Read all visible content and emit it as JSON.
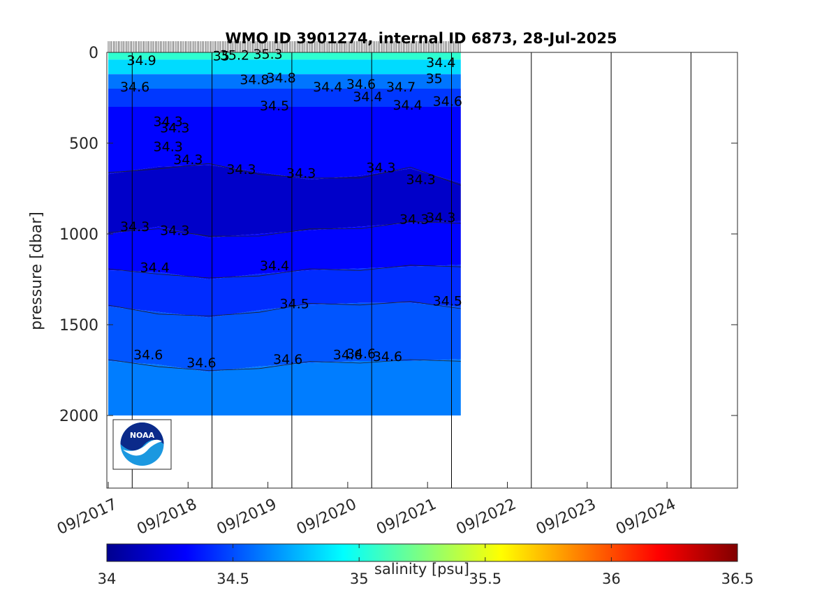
{
  "chart_data": {
    "type": "heatmap",
    "title": "WMO ID 3901274, internal ID 6873, 28-Jul-2025",
    "ylabel": "pressure [dbar]",
    "colorbar_label": "salinity [psu]",
    "x_tick_labels": [
      "09/2017",
      "09/2018",
      "09/2019",
      "09/2020",
      "09/2021",
      "09/2022",
      "09/2023",
      "09/2024"
    ],
    "x_range": [
      "2017-09",
      "2025-07"
    ],
    "data_x_range": [
      "2017-09",
      "2022-02"
    ],
    "y_ticks": [
      0,
      500,
      1000,
      1500,
      2000
    ],
    "ylim": [
      0,
      2400
    ],
    "y_reversed": true,
    "colorbar_ticks": [
      34,
      34.5,
      35,
      35.5,
      36,
      36.5
    ],
    "color_range": [
      34,
      36.5
    ],
    "colormap": "jet",
    "levels": [
      34.2,
      34.3,
      34.4,
      34.5,
      34.6,
      34.7,
      34.8,
      34.9,
      35,
      35.1,
      35.2
    ],
    "contours": [
      {
        "value": 34.3,
        "depth": [
          670,
          630,
          620,
          660,
          700,
          680,
          640,
          720
        ],
        "note": "upper boundary of salinity minimum"
      },
      {
        "value": 34.3,
        "depth": [
          1000,
          960,
          1020,
          1000,
          980,
          960,
          940,
          930
        ],
        "note": "lower boundary of salinity minimum"
      },
      {
        "value": 34.4,
        "depth": [
          1200,
          1210,
          1250,
          1220,
          1200,
          1190,
          1180,
          1170
        ]
      },
      {
        "value": 34.5,
        "depth": [
          1400,
          1430,
          1460,
          1420,
          1390,
          1380,
          1380,
          1400
        ]
      },
      {
        "value": 34.6,
        "depth": [
          1700,
          1720,
          1760,
          1730,
          1710,
          1700,
          1700,
          1690
        ]
      }
    ],
    "contour_labels": [
      {
        "text": "34.3",
        "date": "2018-06",
        "p": 405
      },
      {
        "text": "34.3",
        "date": "2018-07",
        "p": 440
      },
      {
        "text": "34.3",
        "date": "2018-06",
        "p": 545
      },
      {
        "text": "34.3",
        "date": "2018-09",
        "p": 615
      },
      {
        "text": "34.3",
        "date": "2019-05",
        "p": 670
      },
      {
        "text": "34.3",
        "date": "2020-02",
        "p": 690
      },
      {
        "text": "34.3",
        "date": "2021-02",
        "p": 660
      },
      {
        "text": "34.3",
        "date": "2021-08",
        "p": 725
      },
      {
        "text": "34.3",
        "date": "2018-01",
        "p": 985
      },
      {
        "text": "34.3",
        "date": "2018-07",
        "p": 1005
      },
      {
        "text": "34.3",
        "date": "2021-07",
        "p": 945
      },
      {
        "text": "34.3",
        "date": "2021-11",
        "p": 935
      },
      {
        "text": "34.4",
        "date": "2018-04",
        "p": 1210
      },
      {
        "text": "34.4",
        "date": "2019-10",
        "p": 1200
      },
      {
        "text": "34.5",
        "date": "2020-01",
        "p": 1410
      },
      {
        "text": "34.5",
        "date": "2021-12",
        "p": 1395
      },
      {
        "text": "34.6",
        "date": "2018-03",
        "p": 1690
      },
      {
        "text": "34.6",
        "date": "2018-11",
        "p": 1735
      },
      {
        "text": "34.6",
        "date": "2019-12",
        "p": 1715
      },
      {
        "text": "34.6",
        "date": "2020-09",
        "p": 1690
      },
      {
        "text": "34.6",
        "date": "2020-11",
        "p": 1685
      },
      {
        "text": "34.6",
        "date": "2021-03",
        "p": 1700
      },
      {
        "text": "34.5",
        "date": "2019-10",
        "p": 320
      },
      {
        "text": "34.4",
        "date": "2021-06",
        "p": 315
      },
      {
        "text": "34.4",
        "date": "2020-12",
        "p": 270
      },
      {
        "text": "34.6",
        "date": "2021-12",
        "p": 295
      },
      {
        "text": "34.6",
        "date": "2018-01",
        "p": 215
      },
      {
        "text": "34.4",
        "date": "2020-06",
        "p": 215
      },
      {
        "text": "34.6",
        "date": "2020-11",
        "p": 200
      },
      {
        "text": "34.7",
        "date": "2021-05",
        "p": 215
      },
      {
        "text": "35",
        "date": "2021-10",
        "p": 170
      },
      {
        "text": "34.8",
        "date": "2019-11",
        "p": 165
      },
      {
        "text": "34.8",
        "date": "2019-07",
        "p": 175
      },
      {
        "text": "35",
        "date": "2019-02",
        "p": 45
      },
      {
        "text": "35.2",
        "date": "2019-04",
        "p": 40
      },
      {
        "text": "34.9",
        "date": "2018-02",
        "p": 70
      },
      {
        "text": "35.3",
        "date": "2019-09",
        "p": 35
      },
      {
        "text": "34.4",
        "date": "2021-11",
        "p": 80
      }
    ]
  },
  "logo": {
    "text": "NOAA"
  }
}
